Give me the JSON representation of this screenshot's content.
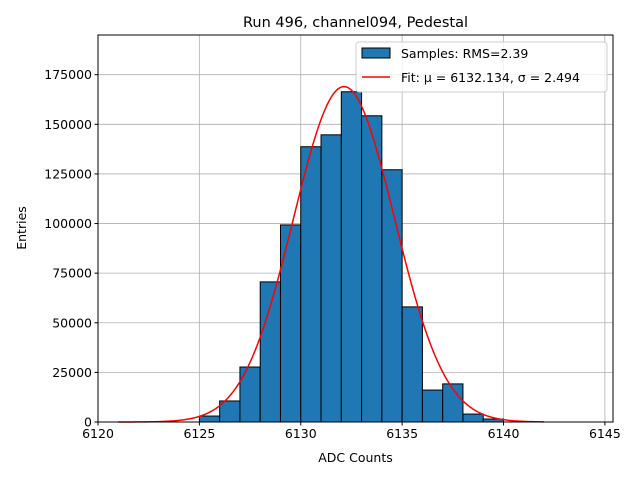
{
  "chart_data": {
    "type": "bar",
    "title": "Run 496, channel094, Pedestal",
    "xlabel": "ADC Counts",
    "ylabel": "Entries",
    "xlim": [
      6120,
      6145.4
    ],
    "ylim": [
      0,
      195000
    ],
    "grid": true,
    "xticks": [
      6120,
      6125,
      6130,
      6135,
      6140,
      6145
    ],
    "yticks": [
      0,
      25000,
      50000,
      75000,
      100000,
      125000,
      150000,
      175000
    ],
    "bin_edges_start": [
      6125,
      6126,
      6127,
      6128,
      6129,
      6130,
      6131,
      6132,
      6133,
      6134,
      6135,
      6136,
      6137,
      6138,
      6139
    ],
    "bin_width": 1,
    "values": [
      3000,
      10600,
      27700,
      70600,
      99300,
      138700,
      144700,
      166400,
      154300,
      127100,
      58000,
      16100,
      19200,
      4000,
      1500
    ],
    "bar_color": "#1f77b4",
    "fit": {
      "mu": 6132.134,
      "sigma": 2.494,
      "amplitude": 169000,
      "x_range": [
        6121,
        6142
      ],
      "color": "#ff0000"
    },
    "legend": {
      "placement": "top-right",
      "entries": [
        "Samples: RMS=2.39",
        "Fit: μ = 6132.134, σ = 2.494"
      ]
    }
  }
}
